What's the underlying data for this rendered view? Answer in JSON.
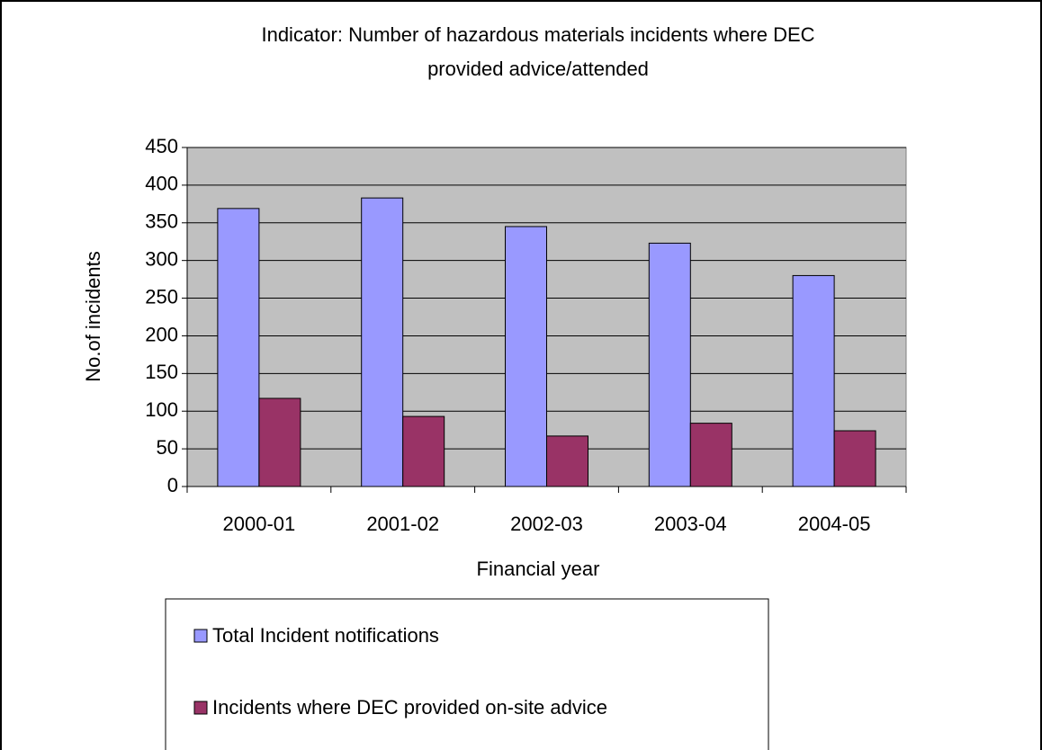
{
  "chart_data": {
    "type": "bar",
    "title": "Indicator: Number of hazardous materials incidents where DEC provided advice/attended",
    "x_label": "Financial year",
    "y_label": "No.of incidents",
    "categories": [
      "2000-01",
      "2001-02",
      "2002-03",
      "2003-04",
      "2004-05"
    ],
    "series": [
      {
        "name": "Total Incident notifications",
        "color": "#9999ff",
        "values": [
          369,
          383,
          345,
          323,
          280
        ]
      },
      {
        "name": "Incidents where DEC provided on-site advice",
        "color": "#993366",
        "values": [
          117,
          93,
          67,
          84,
          74
        ]
      }
    ],
    "ylim": [
      0,
      450
    ],
    "yticks": [
      0,
      50,
      100,
      150,
      200,
      250,
      300,
      350,
      400,
      450
    ],
    "grid": true,
    "plot_background": "#c0c0c0",
    "legend": "bottom"
  }
}
